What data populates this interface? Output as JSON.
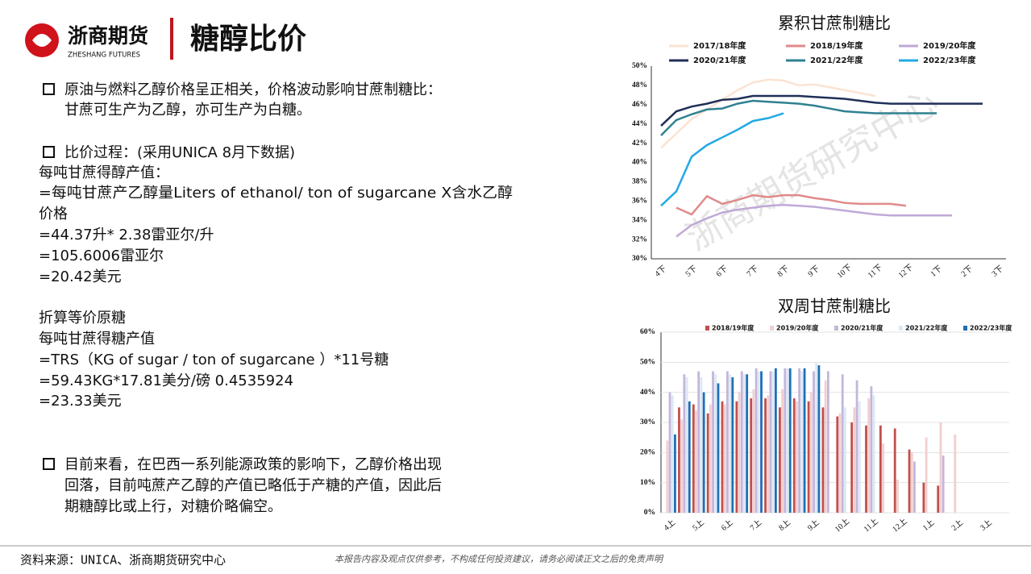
{
  "header": {
    "logo_name": "浙商期货",
    "logo_sub": "ZHESHANG FUTURES",
    "title": "糖醇比价"
  },
  "body": {
    "lines": [
      "原油与燃料乙醇价格呈正相关，价格波动影响甘蔗制糖比：",
      "甘蔗可生产为乙醇，亦可生产为白糖。",
      "比价过程：(采用UNICA 8月下数据)",
      "每吨甘蔗得醇产值：",
      "=每吨甘蔗产乙醇量Liters of ethanol/ ton of sugarcane X含水乙醇",
      "价格",
      "=44.37升* 2.38雷亚尔/升",
      "=105.6006雷亚尔",
      "=20.42美元",
      "折算等价原糖",
      "每吨甘蔗得糖产值",
      "=TRS（KG of sugar / ton of sugarcane ）*11号糖",
      "=59.43KG*17.81美分/磅 0.4535924",
      "=23.33美元",
      "目前来看，在巴西一系列能源政策的影响下，乙醇价格出现",
      "回落，目前吨蔗产乙醇的产值已略低于产糖的产值，因此后",
      "期糖醇比或上行，对糖价略偏空。"
    ]
  },
  "watermark": "浙商期货研究中心",
  "footer": {
    "source": "资料来源：UNICA、浙商期货研究中心",
    "disclaimer": "本报告内容及观点仅供参考，不构成任何投资建议，请务必阅读正文之后的免责声明"
  },
  "chart_data": [
    {
      "type": "line",
      "title": "累积甘蔗制糖比",
      "legend": "top",
      "categories": [
        "4下",
        null,
        "5下",
        null,
        "6下",
        null,
        "7下",
        null,
        "8下",
        null,
        "9下",
        null,
        "10下",
        null,
        "11下",
        null,
        "12下",
        null,
        "1下",
        null,
        "2下",
        null,
        "3下"
      ],
      "ylim": [
        30,
        50
      ],
      "yticks": [
        {
          "value": 30,
          "label": "30%"
        },
        {
          "value": 32,
          "label": "32%"
        },
        {
          "value": 34,
          "label": "34%"
        },
        {
          "value": 36,
          "label": "36%"
        },
        {
          "value": 38,
          "label": "38%"
        },
        {
          "value": 40,
          "label": "40%"
        },
        {
          "value": 42,
          "label": "42%"
        },
        {
          "value": 44,
          "label": "44%"
        },
        {
          "value": 46,
          "label": "46%"
        },
        {
          "value": 48,
          "label": "48%"
        },
        {
          "value": 50,
          "label": "50%"
        }
      ],
      "series": [
        {
          "name": "2017/18年度",
          "color": "#fbe3d3",
          "values": [
            41.5,
            43,
            44.5,
            45.5,
            46.5,
            47.5,
            48.3,
            48.6,
            48.5,
            48,
            48.1,
            47.8,
            47.5,
            47.2,
            46.9,
            null,
            null,
            null,
            null,
            null,
            null,
            null,
            null
          ]
        },
        {
          "name": "2018/19年度",
          "color": "#e08a8a",
          "values": [
            null,
            35.3,
            34.6,
            36.5,
            35.7,
            36.1,
            36.6,
            36.4,
            36.6,
            36.6,
            36.3,
            36.1,
            35.8,
            35.7,
            35.7,
            35.7,
            35.5,
            null,
            null,
            null,
            null,
            null,
            null
          ]
        },
        {
          "name": "2019/20年度",
          "color": "#bfa9d6",
          "values": [
            null,
            32.3,
            33.5,
            34.2,
            34.8,
            35.1,
            35.3,
            35.5,
            35.6,
            35.5,
            35.4,
            35.2,
            35,
            34.8,
            34.6,
            34.5,
            34.5,
            34.5,
            34.5,
            34.5,
            null,
            null,
            null
          ]
        },
        {
          "name": "2020/21年度",
          "color": "#1f2f57",
          "values": [
            43.8,
            45.3,
            45.8,
            46.1,
            46.5,
            46.6,
            46.9,
            46.9,
            46.9,
            46.9,
            46.8,
            46.7,
            46.6,
            46.4,
            46.2,
            46.1,
            46.1,
            46.1,
            46.1,
            46.1,
            46.1,
            46.1,
            null
          ]
        },
        {
          "name": "2021/22年度",
          "color": "#2f8190",
          "values": [
            42.8,
            44.4,
            45,
            45.5,
            45.6,
            46.1,
            46.4,
            46.3,
            46.2,
            46.1,
            45.9,
            45.6,
            45.3,
            45.2,
            45.1,
            45.1,
            45.1,
            45.1,
            45.1,
            null,
            null,
            null,
            null
          ]
        },
        {
          "name": "2022/23年度",
          "color": "#22a9e6",
          "values": [
            35.5,
            37,
            40.6,
            41.8,
            42.6,
            43.4,
            44.3,
            44.6,
            45.1,
            null,
            null,
            null,
            null,
            null,
            null,
            null,
            null,
            null,
            null,
            null,
            null,
            null,
            null
          ]
        }
      ]
    },
    {
      "type": "bar",
      "title": "双周甘蔗制糖比",
      "legend": "top",
      "grid": true,
      "categories": [
        "4上",
        null,
        "5上",
        null,
        "6上",
        null,
        "7上",
        null,
        "8上",
        null,
        "9上",
        null,
        "10上",
        null,
        "11上",
        null,
        "12上",
        null,
        "1上",
        null,
        "2上",
        null,
        "3上",
        null
      ],
      "ylim": [
        0,
        60
      ],
      "yticks": [
        {
          "value": 0,
          "label": "0%"
        },
        {
          "value": 10,
          "label": "10%"
        },
        {
          "value": 20,
          "label": "20%"
        },
        {
          "value": 30,
          "label": "30%"
        },
        {
          "value": 40,
          "label": "40%"
        },
        {
          "value": 50,
          "label": "50%"
        },
        {
          "value": 60,
          "label": "60%"
        }
      ],
      "series": [
        {
          "name": "2018/19年度",
          "color": "#c0504d",
          "values": [
            null,
            35,
            36,
            33,
            37,
            37,
            38,
            38,
            35,
            38,
            37,
            35,
            32,
            30,
            29,
            29,
            28,
            21,
            10,
            9,
            null,
            null,
            null,
            null
          ]
        },
        {
          "name": "2019/20年度",
          "color": "#f2cfcf",
          "values": [
            24,
            31,
            34,
            36,
            36,
            40,
            41,
            39,
            41,
            37,
            40,
            44,
            33,
            35,
            38,
            23,
            11,
            20,
            25,
            30,
            26,
            null,
            null,
            null
          ]
        },
        {
          "name": "2020/21年度",
          "color": "#c3b6dc",
          "values": [
            40,
            46,
            47,
            47,
            47,
            47,
            48,
            47,
            48,
            48,
            47,
            47,
            46,
            44,
            42,
            null,
            null,
            17,
            null,
            19,
            null,
            null,
            null,
            null
          ]
        },
        {
          "name": "2021/22年度",
          "color": "#dde8f3",
          "values": [
            39,
            45,
            45,
            46,
            46,
            46,
            47,
            47,
            48,
            47,
            50,
            null,
            35,
            37,
            39,
            null,
            null,
            null,
            null,
            null,
            null,
            null,
            null,
            null
          ]
        },
        {
          "name": "2022/23年度",
          "color": "#1f6fb5",
          "values": [
            26,
            37,
            40,
            43,
            45,
            46,
            47,
            48,
            48,
            48,
            49,
            null,
            null,
            null,
            null,
            null,
            null,
            null,
            null,
            null,
            null,
            null,
            null,
            null
          ]
        }
      ]
    }
  ]
}
